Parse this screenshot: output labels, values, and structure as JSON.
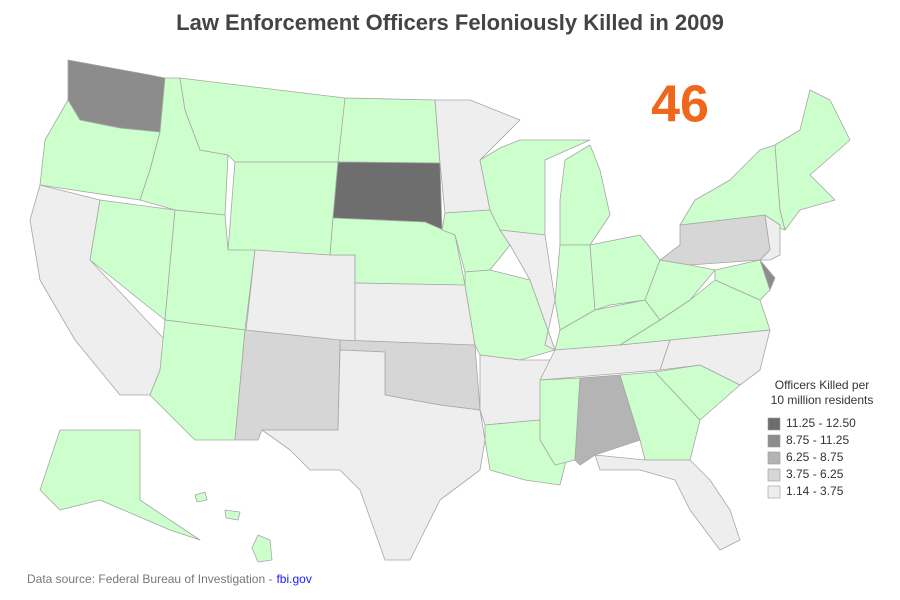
{
  "title": "Law Enforcement Officers Feloniously Killed in 2009",
  "total": 46,
  "legend": {
    "title_lines": [
      "Officers Killed per",
      "10 million residents"
    ],
    "classes": [
      {
        "label": "11.25 - 12.50",
        "color": "#6e6e6e"
      },
      {
        "label": "8.75 - 11.25",
        "color": "#8c8c8c"
      },
      {
        "label": "6.25 - 8.75",
        "color": "#b4b4b4"
      },
      {
        "label": "3.75 - 6.25",
        "color": "#d6d6d6"
      },
      {
        "label": "1.14 - 3.75",
        "color": "#eeeeee"
      }
    ]
  },
  "source": {
    "text": "Data source: Federal Bureau of Investigation -",
    "link": "fbi.gov"
  }
}
